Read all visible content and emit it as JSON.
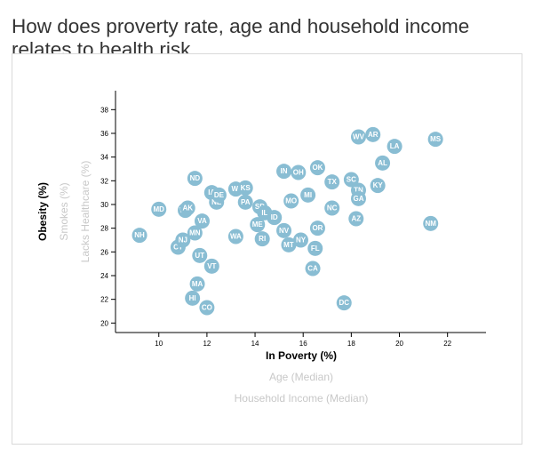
{
  "page": {
    "title": "How does proverty rate, age and household income relates to health risk"
  },
  "colors": {
    "marker": "#89bdd3",
    "active_label": "#000000",
    "inactive_label": "#c8c8c8"
  },
  "axis_labels": {
    "x": [
      {
        "text": "In Poverty (%)",
        "active": true
      },
      {
        "text": "Age (Median)",
        "active": false
      },
      {
        "text": "Household Income (Median)",
        "active": false
      }
    ],
    "y": [
      {
        "text": "Obesity (%)",
        "active": true
      },
      {
        "text": "Smokes (%)",
        "active": false
      },
      {
        "text": "Lacks Healthcare (%)",
        "active": false
      }
    ]
  },
  "chart_data": {
    "type": "scatter",
    "title": "How does proverty rate, age and household income relates to health risk",
    "xlabel": "In Poverty (%)",
    "ylabel": "Obesity (%)",
    "xlim": [
      8.2,
      23.6
    ],
    "ylim": [
      19.2,
      39.6
    ],
    "xticks": [
      10,
      12,
      14,
      16,
      18,
      20,
      22
    ],
    "yticks": [
      20,
      22,
      24,
      26,
      28,
      30,
      32,
      34,
      36,
      38
    ],
    "grid": false,
    "points": [
      {
        "label": "NH",
        "x": 9.2,
        "y": 27.4
      },
      {
        "label": "MD",
        "x": 10.0,
        "y": 29.6
      },
      {
        "label": "CT",
        "x": 10.8,
        "y": 26.4
      },
      {
        "label": "NJ",
        "x": 11.0,
        "y": 27.0
      },
      {
        "label": "WY",
        "x": 11.1,
        "y": 29.5
      },
      {
        "label": "AK",
        "x": 11.2,
        "y": 29.7
      },
      {
        "label": "HI",
        "x": 11.4,
        "y": 22.1
      },
      {
        "label": "ND",
        "x": 11.5,
        "y": 32.2
      },
      {
        "label": "MA",
        "x": 11.6,
        "y": 23.3
      },
      {
        "label": "MN",
        "x": 11.5,
        "y": 27.6
      },
      {
        "label": "UT",
        "x": 11.7,
        "y": 25.7
      },
      {
        "label": "VA",
        "x": 11.8,
        "y": 28.6
      },
      {
        "label": "CO",
        "x": 12.0,
        "y": 21.3
      },
      {
        "label": "IA",
        "x": 12.2,
        "y": 31.0
      },
      {
        "label": "NE",
        "x": 12.4,
        "y": 30.2
      },
      {
        "label": "DE",
        "x": 12.5,
        "y": 30.8
      },
      {
        "label": "VT",
        "x": 12.2,
        "y": 24.8
      },
      {
        "label": "WI",
        "x": 13.2,
        "y": 31.3
      },
      {
        "label": "KS",
        "x": 13.6,
        "y": 31.4
      },
      {
        "label": "WA",
        "x": 13.2,
        "y": 27.3
      },
      {
        "label": "PA",
        "x": 13.6,
        "y": 30.2
      },
      {
        "label": "ME",
        "x": 14.1,
        "y": 28.3
      },
      {
        "label": "SD",
        "x": 14.2,
        "y": 29.8
      },
      {
        "label": "RI",
        "x": 14.3,
        "y": 27.1
      },
      {
        "label": "IL",
        "x": 14.4,
        "y": 29.3
      },
      {
        "label": "ID",
        "x": 14.8,
        "y": 28.9
      },
      {
        "label": "IN",
        "x": 15.2,
        "y": 32.8
      },
      {
        "label": "NV",
        "x": 15.2,
        "y": 27.8
      },
      {
        "label": "OH",
        "x": 15.8,
        "y": 32.7
      },
      {
        "label": "MO",
        "x": 15.5,
        "y": 30.3
      },
      {
        "label": "MT",
        "x": 15.4,
        "y": 26.6
      },
      {
        "label": "NY",
        "x": 15.9,
        "y": 27.0
      },
      {
        "label": "MI",
        "x": 16.2,
        "y": 30.8
      },
      {
        "label": "OK",
        "x": 16.6,
        "y": 33.1
      },
      {
        "label": "CA",
        "x": 16.4,
        "y": 24.6
      },
      {
        "label": "FL",
        "x": 16.5,
        "y": 26.3
      },
      {
        "label": "OR",
        "x": 16.6,
        "y": 28.0
      },
      {
        "label": "NC",
        "x": 17.2,
        "y": 29.7
      },
      {
        "label": "TX",
        "x": 17.2,
        "y": 31.9
      },
      {
        "label": "DC",
        "x": 17.7,
        "y": 21.7
      },
      {
        "label": "SC",
        "x": 18.0,
        "y": 32.1
      },
      {
        "label": "AZ",
        "x": 18.2,
        "y": 28.8
      },
      {
        "label": "TN",
        "x": 18.3,
        "y": 31.2
      },
      {
        "label": "GA",
        "x": 18.3,
        "y": 30.5
      },
      {
        "label": "WV",
        "x": 18.3,
        "y": 35.7
      },
      {
        "label": "AR",
        "x": 18.9,
        "y": 35.9
      },
      {
        "label": "KY",
        "x": 19.1,
        "y": 31.6
      },
      {
        "label": "AL",
        "x": 19.3,
        "y": 33.5
      },
      {
        "label": "LA",
        "x": 19.8,
        "y": 34.9
      },
      {
        "label": "NM",
        "x": 21.3,
        "y": 28.4
      },
      {
        "label": "MS",
        "x": 21.5,
        "y": 35.5
      }
    ]
  }
}
